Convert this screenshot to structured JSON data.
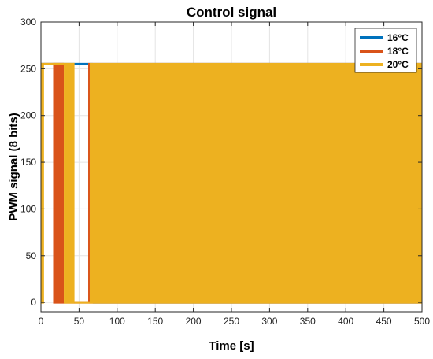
{
  "chart_data": {
    "type": "line",
    "title": "Control signal",
    "xlabel": "Time [s]",
    "ylabel": "PWM signal (8 bits)",
    "xlim": [
      0,
      500
    ],
    "ylim": [
      -10,
      300
    ],
    "xticks": [
      0,
      50,
      100,
      150,
      200,
      250,
      300,
      350,
      400,
      450,
      500
    ],
    "yticks": [
      0,
      50,
      100,
      150,
      200,
      250,
      300
    ],
    "grid": true,
    "legend_position": "top-right",
    "series": [
      {
        "name": "16°C",
        "color": "#0072BD",
        "segments": [
          {
            "x": [
              0,
              38
            ],
            "y": [
              255,
              255
            ]
          },
          {
            "x": [
              38,
              68
            ],
            "y": [
              255,
              255
            ]
          },
          {
            "x": [
              68,
              500
            ],
            "y_band": [
              0,
              255
            ]
          }
        ]
      },
      {
        "name": "18°C",
        "color": "#D95319",
        "segments": [
          {
            "x": [
              0,
              16
            ],
            "y": [
              255,
              255
            ]
          },
          {
            "x": [
              16,
              30
            ],
            "y": [
              255,
              255
            ],
            "block": [
              0,
              255
            ]
          },
          {
            "x": [
              30,
              62
            ],
            "y": [
              0,
              0
            ]
          },
          {
            "x": [
              62,
              66
            ],
            "block": [
              0,
              255
            ]
          },
          {
            "x": [
              66,
              500
            ],
            "y_band": [
              0,
              255
            ]
          }
        ]
      },
      {
        "name": "20°C",
        "color": "#EDB120",
        "segments": [
          {
            "x": [
              0,
              4
            ],
            "block": [
              0,
              255
            ]
          },
          {
            "x": [
              4,
              44
            ],
            "y": [
              255,
              255
            ]
          },
          {
            "x": [
              30,
              44
            ],
            "block": [
              0,
              255
            ]
          },
          {
            "x": [
              44,
              64
            ],
            "y": [
              0,
              0
            ]
          },
          {
            "x": [
              64,
              500
            ],
            "y_band": [
              0,
              255
            ]
          }
        ]
      }
    ]
  }
}
